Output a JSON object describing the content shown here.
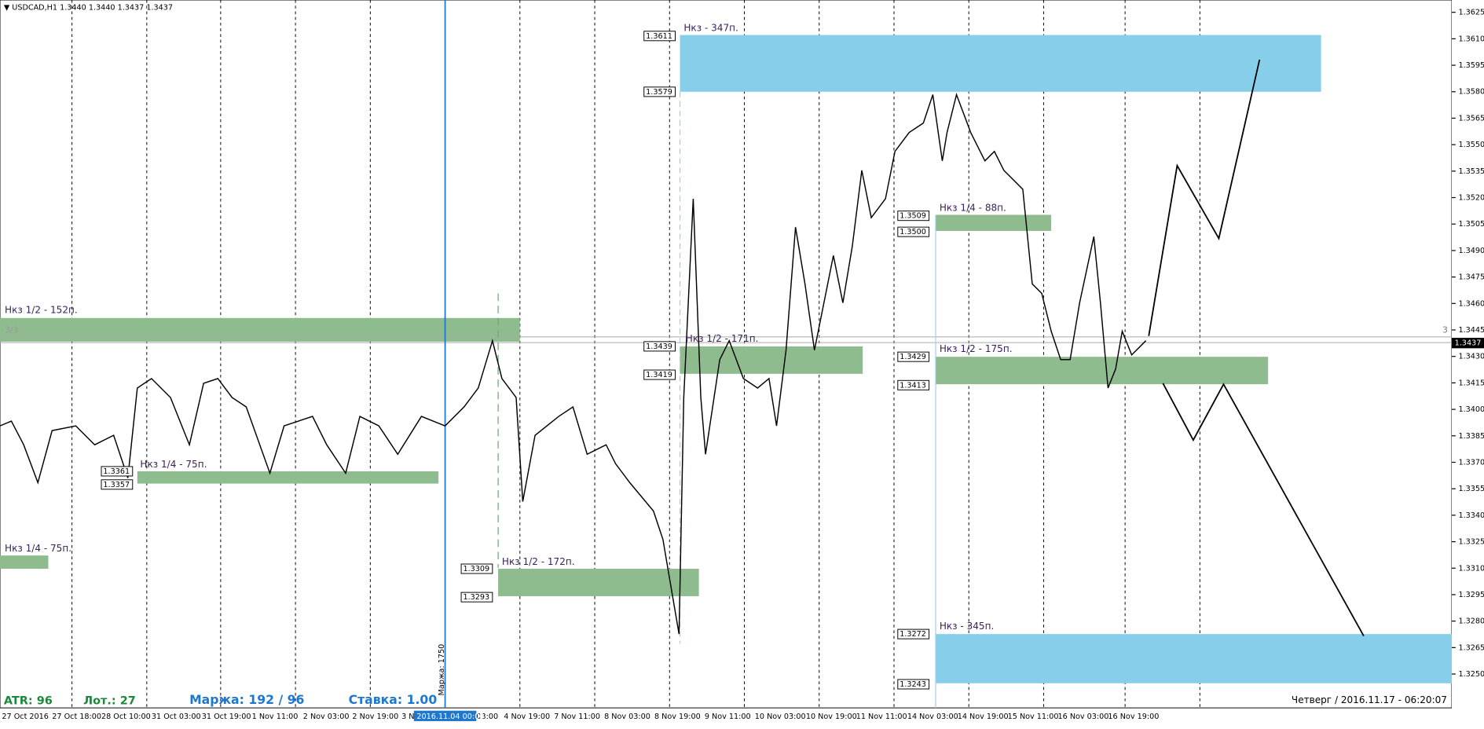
{
  "header": {
    "title": "USDCAD,H1  1.3440 1.3440 1.3437 1.3437"
  },
  "price_axis": {
    "labels": [
      "1.3625",
      "1.3610",
      "1.3595",
      "1.3580",
      "1.3565",
      "1.3550",
      "1.3535",
      "1.3520",
      "1.3505",
      "1.3490",
      "1.3475",
      "1.3460",
      "1.3445",
      "1.3430",
      "1.3415",
      "1.3400",
      "1.3385",
      "1.3370",
      "1.3355",
      "1.3340",
      "1.3325",
      "1.3310",
      "1.3295",
      "1.3280",
      "1.3265",
      "1.3250"
    ],
    "current_price": "1.3437"
  },
  "time_axis": {
    "labels": [
      "27 Oct 2016",
      "27 Oct 18:00",
      "28 Oct 10:00",
      "31 Oct 03:00",
      "31 Oct 19:00",
      "1 Nov 11:00",
      "2 Nov 03:00",
      "2 Nov 19:00",
      "3 N",
      "03:00",
      "4 Nov 19:00",
      "7 Nov 11:00",
      "8 Nov 03:00",
      "8 Nov 19:00",
      "9 Nov 11:00",
      "10 Nov 03:00",
      "10 Nov 19:00",
      "11 Nov 11:00",
      "14 Nov 03:00",
      "14 Nov 19:00",
      "15 Nov 11:00",
      "16 Nov 03:00",
      "16 Nov 19:00"
    ],
    "cursor_label": "2016.11.04 00:00"
  },
  "zones": [
    {
      "label": "Нкз - 347п.",
      "top_tag": "1.3611",
      "bottom_tag": "1.3579"
    },
    {
      "label": "Нкз 1/2 - 152п."
    },
    {
      "label": "Нкз 1/4 - 75п."
    },
    {
      "label": "Нкз 1/4 - 75п.",
      "top_tag": "1.3361",
      "bottom_tag": "1.3357"
    },
    {
      "label": "Нкз 1/2 - 172п.",
      "top_tag": "1.3309",
      "bottom_tag": "1.3293"
    },
    {
      "label": "Нкз 1/2 - 171п.",
      "top_tag": "1.3439",
      "bottom_tag": "1.3419"
    },
    {
      "label": "Нкз 1/4 - 88п.",
      "top_tag": "1.3509",
      "bottom_tag": "1.3500"
    },
    {
      "label": "Нкз 1/2 - 175п.",
      "top_tag": "1.3429",
      "bottom_tag": "1.3413"
    },
    {
      "label": "Нкз - 345п.",
      "top_tag": "1.3272",
      "bottom_tag": "1.3243"
    }
  ],
  "misc": {
    "fraction": "3/3",
    "right_marker": "3",
    "mark_vertical": "Маржа: 1750"
  },
  "footer": {
    "atr": "ATR: 96",
    "lot": "Лот.: 27",
    "margin": "Маржа: 192 / 96",
    "rate": "Ставка: 1.00",
    "datetime": "Четверг  /  2016.11.17  -  06:20:07"
  }
}
